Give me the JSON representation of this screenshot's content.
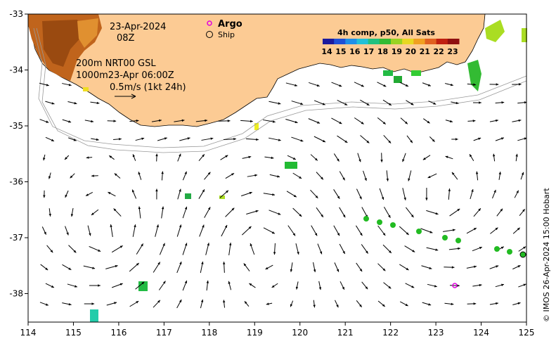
{
  "map": {
    "date": "23-Apr-2024",
    "time": "08Z",
    "depth_line1": "200m  NRT00 GSL",
    "depth_line2": "1000m23-Apr 06:00Z",
    "scale_label": "0.5m/s (1kt 24h)",
    "legend": {
      "argo": "Argo",
      "ship": "Ship"
    },
    "colorbar": {
      "title": "4h comp, p50, All Sats",
      "ticks": [
        "14",
        "15",
        "16",
        "17",
        "18",
        "19",
        "20",
        "21",
        "22",
        "23"
      ]
    },
    "x_ticks": [
      "114",
      "115",
      "116",
      "117",
      "118",
      "119",
      "120",
      "121",
      "122",
      "123",
      "124",
      "125"
    ],
    "y_ticks": [
      "-33",
      "-34",
      "-35",
      "-36",
      "-37",
      "-38"
    ],
    "credit": "© IMOS 26-Apr-2024 15:00 Hobart",
    "colors": {
      "land": "#fccb94",
      "argo": "#e000e0",
      "sst_green": "#22bb22"
    }
  }
}
